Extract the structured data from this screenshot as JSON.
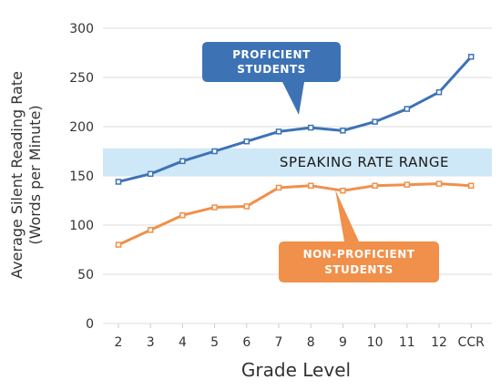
{
  "chart_data": {
    "type": "line",
    "xlabel": "Grade Level",
    "ylabel_lines": [
      "Average Silent Reading Rate",
      "(Words per Minute)"
    ],
    "categories": [
      "2",
      "3",
      "4",
      "5",
      "6",
      "7",
      "8",
      "9",
      "10",
      "11",
      "12",
      "CCR"
    ],
    "ylim": [
      0,
      300
    ],
    "yticks": [
      "0",
      "50",
      "100",
      "150",
      "200",
      "250",
      "300"
    ],
    "grid": "horizontal",
    "series": [
      {
        "key": "proficient",
        "values": [
          144,
          152,
          165,
          175,
          185,
          195,
          199,
          196,
          205,
          218,
          235,
          271
        ],
        "color": "#3d73b5"
      },
      {
        "key": "nonproficient",
        "values": [
          80,
          95,
          110,
          118,
          119,
          138,
          140,
          135,
          140,
          141,
          142,
          140
        ],
        "color": "#f0904a"
      }
    ],
    "band": {
      "label": "SPEAKING RATE RANGE",
      "range": [
        150,
        178
      ],
      "color": "#cfe8f7"
    },
    "callouts": {
      "proficient": {
        "lines": [
          "PROFICIENT",
          "STUDENTS"
        ],
        "color": "#3d73b5"
      },
      "nonproficient": {
        "lines": [
          "NON-PROFICIENT",
          "STUDENTS"
        ],
        "color": "#f0904a"
      }
    }
  }
}
